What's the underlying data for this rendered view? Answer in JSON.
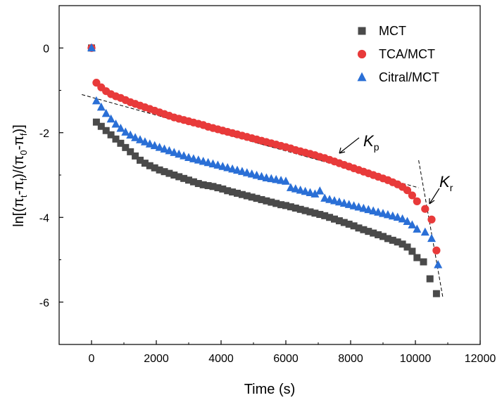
{
  "chart_data": {
    "type": "scatter",
    "xlabel": "Time (s)",
    "ylabel": "ln[(π_t-π_f)/(π_0-π_f)]",
    "xlim": [
      -1000,
      12000
    ],
    "ylim": [
      -7,
      1
    ],
    "xticks": [
      0,
      2000,
      4000,
      6000,
      8000,
      10000,
      12000
    ],
    "yticks": [
      0,
      -2,
      -4,
      -6
    ],
    "grid": false,
    "legend_position": "top-right",
    "series": [
      {
        "name": "MCT",
        "marker": "square",
        "color": "#4a4a4a",
        "points": [
          [
            0,
            0
          ],
          [
            150,
            -1.75
          ],
          [
            300,
            -1.85
          ],
          [
            450,
            -1.95
          ],
          [
            600,
            -2.05
          ],
          [
            750,
            -2.15
          ],
          [
            900,
            -2.25
          ],
          [
            1050,
            -2.35
          ],
          [
            1200,
            -2.45
          ],
          [
            1350,
            -2.55
          ],
          [
            1500,
            -2.65
          ],
          [
            1650,
            -2.72
          ],
          [
            1800,
            -2.78
          ],
          [
            1950,
            -2.83
          ],
          [
            2100,
            -2.88
          ],
          [
            2250,
            -2.92
          ],
          [
            2400,
            -2.96
          ],
          [
            2550,
            -3.0
          ],
          [
            2700,
            -3.04
          ],
          [
            2850,
            -3.08
          ],
          [
            3000,
            -3.12
          ],
          [
            3150,
            -3.16
          ],
          [
            3300,
            -3.2
          ],
          [
            3450,
            -3.23
          ],
          [
            3600,
            -3.25
          ],
          [
            3750,
            -3.27
          ],
          [
            3900,
            -3.3
          ],
          [
            4050,
            -3.33
          ],
          [
            4200,
            -3.37
          ],
          [
            4350,
            -3.4
          ],
          [
            4500,
            -3.43
          ],
          [
            4650,
            -3.46
          ],
          [
            4800,
            -3.49
          ],
          [
            4950,
            -3.52
          ],
          [
            5100,
            -3.55
          ],
          [
            5250,
            -3.58
          ],
          [
            5400,
            -3.61
          ],
          [
            5550,
            -3.64
          ],
          [
            5700,
            -3.67
          ],
          [
            5850,
            -3.7
          ],
          [
            6000,
            -3.72
          ],
          [
            6150,
            -3.75
          ],
          [
            6300,
            -3.78
          ],
          [
            6450,
            -3.81
          ],
          [
            6600,
            -3.84
          ],
          [
            6750,
            -3.87
          ],
          [
            6900,
            -3.9
          ],
          [
            7050,
            -3.93
          ],
          [
            7200,
            -3.96
          ],
          [
            7350,
            -4.0
          ],
          [
            7500,
            -4.04
          ],
          [
            7650,
            -4.08
          ],
          [
            7800,
            -4.12
          ],
          [
            7950,
            -4.16
          ],
          [
            8100,
            -4.2
          ],
          [
            8250,
            -4.25
          ],
          [
            8400,
            -4.29
          ],
          [
            8550,
            -4.33
          ],
          [
            8700,
            -4.37
          ],
          [
            8850,
            -4.41
          ],
          [
            9000,
            -4.45
          ],
          [
            9150,
            -4.5
          ],
          [
            9300,
            -4.54
          ],
          [
            9450,
            -4.58
          ],
          [
            9600,
            -4.63
          ],
          [
            9750,
            -4.7
          ],
          [
            9900,
            -4.8
          ],
          [
            10050,
            -4.95
          ],
          [
            10250,
            -5.05
          ],
          [
            10450,
            -5.45
          ],
          [
            10650,
            -5.8
          ]
        ]
      },
      {
        "name": "TCA/MCT",
        "marker": "circle",
        "color": "#e83a3a",
        "points": [
          [
            0,
            0
          ],
          [
            150,
            -0.82
          ],
          [
            300,
            -0.93
          ],
          [
            450,
            -1.02
          ],
          [
            600,
            -1.09
          ],
          [
            750,
            -1.14
          ],
          [
            900,
            -1.18
          ],
          [
            1050,
            -1.23
          ],
          [
            1200,
            -1.28
          ],
          [
            1350,
            -1.32
          ],
          [
            1500,
            -1.36
          ],
          [
            1650,
            -1.4
          ],
          [
            1800,
            -1.44
          ],
          [
            1950,
            -1.48
          ],
          [
            2100,
            -1.52
          ],
          [
            2250,
            -1.56
          ],
          [
            2400,
            -1.6
          ],
          [
            2550,
            -1.64
          ],
          [
            2700,
            -1.67
          ],
          [
            2850,
            -1.7
          ],
          [
            3000,
            -1.73
          ],
          [
            3150,
            -1.76
          ],
          [
            3300,
            -1.79
          ],
          [
            3450,
            -1.82
          ],
          [
            3600,
            -1.86
          ],
          [
            3750,
            -1.89
          ],
          [
            3900,
            -1.92
          ],
          [
            4050,
            -1.95
          ],
          [
            4200,
            -1.98
          ],
          [
            4350,
            -2.01
          ],
          [
            4500,
            -2.04
          ],
          [
            4650,
            -2.07
          ],
          [
            4800,
            -2.1
          ],
          [
            4950,
            -2.13
          ],
          [
            5100,
            -2.16
          ],
          [
            5250,
            -2.19
          ],
          [
            5400,
            -2.22
          ],
          [
            5550,
            -2.25
          ],
          [
            5700,
            -2.28
          ],
          [
            5850,
            -2.31
          ],
          [
            6000,
            -2.34
          ],
          [
            6150,
            -2.37
          ],
          [
            6300,
            -2.41
          ],
          [
            6450,
            -2.44
          ],
          [
            6600,
            -2.47
          ],
          [
            6750,
            -2.5
          ],
          [
            6900,
            -2.53
          ],
          [
            7050,
            -2.57
          ],
          [
            7200,
            -2.6
          ],
          [
            7350,
            -2.64
          ],
          [
            7500,
            -2.68
          ],
          [
            7650,
            -2.72
          ],
          [
            7800,
            -2.76
          ],
          [
            7950,
            -2.8
          ],
          [
            8100,
            -2.84
          ],
          [
            8250,
            -2.88
          ],
          [
            8400,
            -2.92
          ],
          [
            8550,
            -2.96
          ],
          [
            8700,
            -3.0
          ],
          [
            8850,
            -3.04
          ],
          [
            9000,
            -3.08
          ],
          [
            9150,
            -3.12
          ],
          [
            9300,
            -3.17
          ],
          [
            9450,
            -3.22
          ],
          [
            9600,
            -3.28
          ],
          [
            9750,
            -3.36
          ],
          [
            9900,
            -3.48
          ],
          [
            10050,
            -3.62
          ],
          [
            10300,
            -3.8
          ],
          [
            10500,
            -4.05
          ],
          [
            10650,
            -4.78
          ]
        ]
      },
      {
        "name": "Citral/MCT",
        "marker": "triangle",
        "color": "#2a6fd6",
        "points": [
          [
            0,
            0
          ],
          [
            150,
            -1.25
          ],
          [
            300,
            -1.4
          ],
          [
            450,
            -1.55
          ],
          [
            600,
            -1.68
          ],
          [
            750,
            -1.8
          ],
          [
            900,
            -1.9
          ],
          [
            1050,
            -1.99
          ],
          [
            1200,
            -2.06
          ],
          [
            1350,
            -2.12
          ],
          [
            1500,
            -2.17
          ],
          [
            1650,
            -2.22
          ],
          [
            1800,
            -2.27
          ],
          [
            1950,
            -2.31
          ],
          [
            2100,
            -2.35
          ],
          [
            2250,
            -2.39
          ],
          [
            2400,
            -2.43
          ],
          [
            2550,
            -2.47
          ],
          [
            2700,
            -2.51
          ],
          [
            2850,
            -2.55
          ],
          [
            3000,
            -2.59
          ],
          [
            3150,
            -2.62
          ],
          [
            3300,
            -2.65
          ],
          [
            3450,
            -2.68
          ],
          [
            3600,
            -2.71
          ],
          [
            3750,
            -2.74
          ],
          [
            3900,
            -2.77
          ],
          [
            4050,
            -2.8
          ],
          [
            4200,
            -2.83
          ],
          [
            4350,
            -2.86
          ],
          [
            4500,
            -2.89
          ],
          [
            4650,
            -2.92
          ],
          [
            4800,
            -2.95
          ],
          [
            4950,
            -2.98
          ],
          [
            5100,
            -3.01
          ],
          [
            5250,
            -3.04
          ],
          [
            5400,
            -3.07
          ],
          [
            5550,
            -3.09
          ],
          [
            5700,
            -3.11
          ],
          [
            5850,
            -3.13
          ],
          [
            6000,
            -3.15
          ],
          [
            6150,
            -3.3
          ],
          [
            6300,
            -3.33
          ],
          [
            6450,
            -3.36
          ],
          [
            6600,
            -3.39
          ],
          [
            6750,
            -3.42
          ],
          [
            6900,
            -3.45
          ],
          [
            7050,
            -3.38
          ],
          [
            7200,
            -3.55
          ],
          [
            7350,
            -3.58
          ],
          [
            7500,
            -3.61
          ],
          [
            7650,
            -3.64
          ],
          [
            7800,
            -3.67
          ],
          [
            7950,
            -3.7
          ],
          [
            8100,
            -3.73
          ],
          [
            8250,
            -3.76
          ],
          [
            8400,
            -3.79
          ],
          [
            8550,
            -3.82
          ],
          [
            8700,
            -3.85
          ],
          [
            8850,
            -3.88
          ],
          [
            9000,
            -3.91
          ],
          [
            9150,
            -3.94
          ],
          [
            9300,
            -3.97
          ],
          [
            9450,
            -4.0
          ],
          [
            9600,
            -4.04
          ],
          [
            9750,
            -4.1
          ],
          [
            9900,
            -4.18
          ],
          [
            10050,
            -4.28
          ],
          [
            10300,
            -4.35
          ],
          [
            10500,
            -4.5
          ],
          [
            10700,
            -5.12
          ]
        ]
      }
    ],
    "annotations": [
      {
        "text": "K",
        "sub": "p"
      },
      {
        "text": "K",
        "sub": "r"
      }
    ],
    "fit_lines": [
      {
        "name": "Kp fit",
        "from": [
          -300,
          -1.1
        ],
        "to": [
          10100,
          -3.3
        ]
      },
      {
        "name": "Kr fit",
        "from": [
          10100,
          -2.65
        ],
        "to": [
          10850,
          -5.9
        ]
      }
    ]
  }
}
